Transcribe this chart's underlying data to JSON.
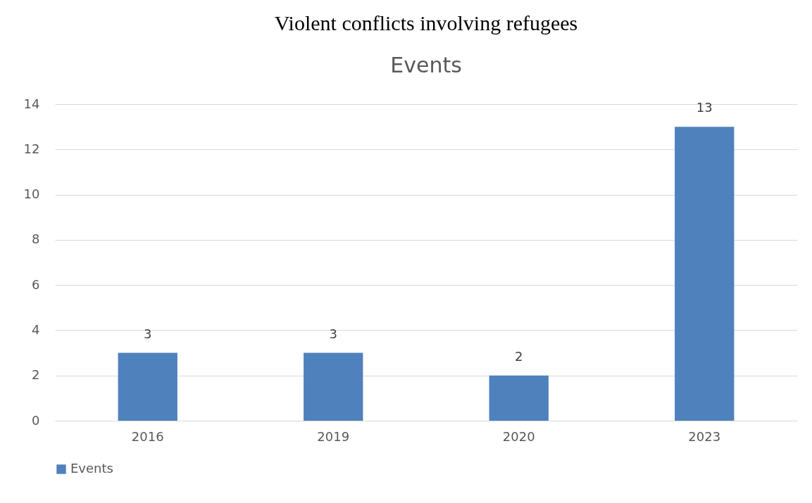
{
  "chart_data": {
    "type": "bar",
    "title": "Violent conflicts involving refugees",
    "subtitle": "Events",
    "categories": [
      "2016",
      "2019",
      "2020",
      "2023"
    ],
    "series": [
      {
        "name": "Events",
        "color": "#4f81bd",
        "values": [
          3,
          3,
          2,
          13
        ]
      }
    ],
    "ylim": [
      0,
      14
    ],
    "yticks": [
      0,
      2,
      4,
      6,
      8,
      10,
      12,
      14
    ],
    "grid": "y",
    "legend": "bottom",
    "data_labels": true
  }
}
